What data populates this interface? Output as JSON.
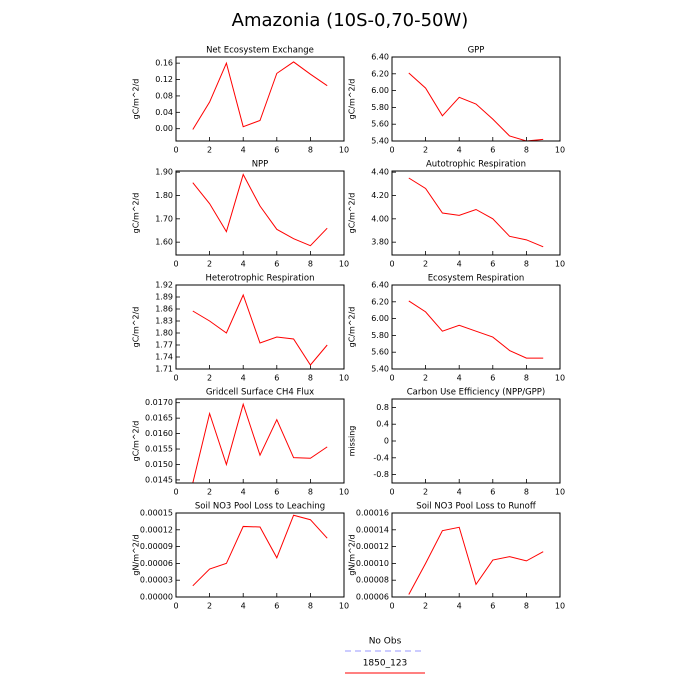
{
  "title": "Amazonia (10S-0,70-50W)",
  "chart_data": [
    {
      "type": "line",
      "title": "Net Ecosystem Exchange",
      "ylabel": "gC/m^2/d",
      "x": [
        1,
        2,
        3,
        4,
        5,
        6,
        7,
        8,
        9
      ],
      "xlim": [
        0,
        10
      ],
      "xticks": [
        0,
        2,
        4,
        6,
        8,
        10
      ],
      "ylim": [
        -0.03,
        0.175
      ],
      "yticks": [
        {
          "value": 0,
          "label": "0.00"
        },
        0.04,
        0.08,
        0.12,
        0.16
      ],
      "series": [
        {
          "color": "#ff0000",
          "values": [
            -0.002,
            0.065,
            0.16,
            0.005,
            0.02,
            0.135,
            0.163,
            0.133,
            0.105
          ]
        }
      ]
    },
    {
      "type": "line",
      "title": "GPP",
      "ylabel": "gC/m^2/d",
      "x": [
        1,
        2,
        3,
        4,
        5,
        6,
        7,
        8,
        9
      ],
      "xlim": [
        0,
        10
      ],
      "xticks": [
        0,
        2,
        4,
        6,
        8,
        10
      ],
      "ylim": [
        5.4,
        6.4
      ],
      "yticks": [
        {
          "value": 5.4,
          "label": "5.40"
        },
        {
          "value": 5.6,
          "label": "5.60"
        },
        {
          "value": 5.8,
          "label": "5.80"
        },
        {
          "value": 6.0,
          "label": "6.00"
        },
        {
          "value": 6.2,
          "label": "6.20"
        },
        {
          "value": 6.4,
          "label": "6.40"
        }
      ],
      "series": [
        {
          "color": "#ff0000",
          "values": [
            6.21,
            6.03,
            5.7,
            5.92,
            5.84,
            5.66,
            5.46,
            5.4,
            5.42
          ]
        }
      ]
    },
    {
      "type": "line",
      "title": "NPP",
      "ylabel": "gC/m^2/d",
      "x": [
        1,
        2,
        3,
        4,
        5,
        6,
        7,
        8,
        9
      ],
      "xlim": [
        0,
        10
      ],
      "xticks": [
        0,
        2,
        4,
        6,
        8,
        10
      ],
      "ylim": [
        1.545,
        1.905
      ],
      "yticks": [
        {
          "value": 1.6,
          "label": "1.60"
        },
        {
          "value": 1.7,
          "label": "1.70"
        },
        {
          "value": 1.8,
          "label": "1.80"
        },
        {
          "value": 1.9,
          "label": "1.90"
        }
      ],
      "series": [
        {
          "color": "#ff0000",
          "values": [
            1.855,
            1.765,
            1.645,
            1.89,
            1.755,
            1.655,
            1.615,
            1.585,
            1.66
          ]
        }
      ]
    },
    {
      "type": "line",
      "title": "Autotrophic Respiration",
      "ylabel": "gC/m^2/d",
      "x": [
        1,
        2,
        3,
        4,
        5,
        6,
        7,
        8,
        9
      ],
      "xlim": [
        0,
        10
      ],
      "xticks": [
        0,
        2,
        4,
        6,
        8,
        10
      ],
      "ylim": [
        3.69,
        4.41
      ],
      "yticks": [
        {
          "value": 3.8,
          "label": "3.80"
        },
        {
          "value": 4.0,
          "label": "4.00"
        },
        {
          "value": 4.2,
          "label": "4.20"
        },
        {
          "value": 4.4,
          "label": "4.40"
        }
      ],
      "series": [
        {
          "color": "#ff0000",
          "values": [
            4.35,
            4.26,
            4.05,
            4.03,
            4.08,
            4.0,
            3.85,
            3.82,
            3.76
          ]
        }
      ]
    },
    {
      "type": "line",
      "title": "Heterotrophic Respiration",
      "ylabel": "gC/m^2/d",
      "x": [
        1,
        2,
        3,
        4,
        5,
        6,
        7,
        8,
        9
      ],
      "xlim": [
        0,
        10
      ],
      "xticks": [
        0,
        2,
        4,
        6,
        8,
        10
      ],
      "ylim": [
        1.71,
        1.92
      ],
      "yticks": [
        1.71,
        1.74,
        1.77,
        {
          "value": 1.8,
          "label": "1.80"
        },
        1.83,
        1.86,
        1.89,
        1.92
      ],
      "series": [
        {
          "color": "#ff0000",
          "values": [
            1.855,
            1.83,
            1.8,
            1.895,
            1.775,
            1.79,
            1.785,
            1.72,
            1.77
          ]
        }
      ]
    },
    {
      "type": "line",
      "title": "Ecosystem Respiration",
      "ylabel": "gC/m^2/d",
      "x": [
        1,
        2,
        3,
        4,
        5,
        6,
        7,
        8,
        9
      ],
      "xlim": [
        0,
        10
      ],
      "xticks": [
        0,
        2,
        4,
        6,
        8,
        10
      ],
      "ylim": [
        5.4,
        6.4
      ],
      "yticks": [
        {
          "value": 5.4,
          "label": "5.40"
        },
        {
          "value": 5.6,
          "label": "5.60"
        },
        {
          "value": 5.8,
          "label": "5.80"
        },
        {
          "value": 6.0,
          "label": "6.00"
        },
        {
          "value": 6.2,
          "label": "6.20"
        },
        {
          "value": 6.4,
          "label": "6.40"
        }
      ],
      "series": [
        {
          "color": "#ff0000",
          "values": [
            6.21,
            6.08,
            5.85,
            5.92,
            5.85,
            5.78,
            5.62,
            5.53,
            5.53
          ]
        }
      ]
    },
    {
      "type": "line",
      "title": "Gridcell Surface CH4 Flux",
      "ylabel": "gC/m^2/d",
      "x": [
        1,
        2,
        3,
        4,
        5,
        6,
        7,
        8,
        9
      ],
      "xlim": [
        0,
        10
      ],
      "xticks": [
        0,
        2,
        4,
        6,
        8,
        10
      ],
      "ylim": [
        0.0144,
        0.01712
      ],
      "yticks": [
        0.0145,
        {
          "value": 0.015,
          "label": "0.0150"
        },
        0.0155,
        {
          "value": 0.016,
          "label": "0.0160"
        },
        0.0165,
        {
          "value": 0.017,
          "label": "0.0170"
        }
      ],
      "series": [
        {
          "color": "#ff0000",
          "values": [
            0.0144,
            0.01665,
            0.015,
            0.01695,
            0.0153,
            0.01645,
            0.01522,
            0.0152,
            0.01557
          ]
        }
      ]
    },
    {
      "type": "line",
      "title": "Carbon Use Efficiency (NPP/GPP)",
      "ylabel": "missing",
      "x": [],
      "xlim": [
        0,
        10
      ],
      "xticks": [
        0,
        2,
        4,
        6,
        8,
        10
      ],
      "ylim": [
        -1,
        1
      ],
      "yticks": [
        -0.8,
        -0.4,
        0,
        0.4,
        0.8
      ],
      "series": []
    },
    {
      "type": "line",
      "title": "Soil NO3 Pool Loss to Leaching",
      "ylabel": "gN/m^2/d",
      "x": [
        1,
        2,
        3,
        4,
        5,
        6,
        7,
        8,
        9
      ],
      "xlim": [
        0,
        10
      ],
      "xticks": [
        0,
        2,
        4,
        6,
        8,
        10
      ],
      "ylim": [
        0,
        0.00015
      ],
      "yticks": [
        {
          "value": 0,
          "label": "0.00000"
        },
        {
          "value": 3e-05,
          "label": "0.00003"
        },
        {
          "value": 6e-05,
          "label": "0.00006"
        },
        {
          "value": 9e-05,
          "label": "0.00009"
        },
        {
          "value": 0.00012,
          "label": "0.00012"
        },
        {
          "value": 0.00015,
          "label": "0.00015"
        }
      ],
      "series": [
        {
          "color": "#ff0000",
          "values": [
            2e-05,
            5e-05,
            6e-05,
            0.000126,
            0.000125,
            7e-05,
            0.000146,
            0.000138,
            0.000105
          ]
        }
      ]
    },
    {
      "type": "line",
      "title": "Soil NO3 Pool Loss to Runoff",
      "ylabel": "gN/m^2/d",
      "x": [
        1,
        2,
        3,
        4,
        5,
        6,
        7,
        8,
        9
      ],
      "xlim": [
        0,
        10
      ],
      "xticks": [
        0,
        2,
        4,
        6,
        8,
        10
      ],
      "ylim": [
        6e-05,
        0.00016
      ],
      "yticks": [
        {
          "value": 6e-05,
          "label": "0.00006"
        },
        {
          "value": 8e-05,
          "label": "0.00008"
        },
        {
          "value": 0.0001,
          "label": "0.00010"
        },
        {
          "value": 0.00012,
          "label": "0.00012"
        },
        {
          "value": 0.00014,
          "label": "0.00014"
        },
        {
          "value": 0.00016,
          "label": "0.00016"
        }
      ],
      "series": [
        {
          "color": "#ff0000",
          "values": [
            6.3e-05,
            0.0001,
            0.000139,
            0.000143,
            7.5e-05,
            0.000104,
            0.000108,
            0.000103,
            0.000114
          ]
        }
      ]
    }
  ],
  "legend": [
    {
      "label": "No Obs",
      "color": "#9999ff",
      "dashed": true
    },
    {
      "label": "1850_123",
      "color": "#ff0000",
      "dashed": false
    }
  ]
}
